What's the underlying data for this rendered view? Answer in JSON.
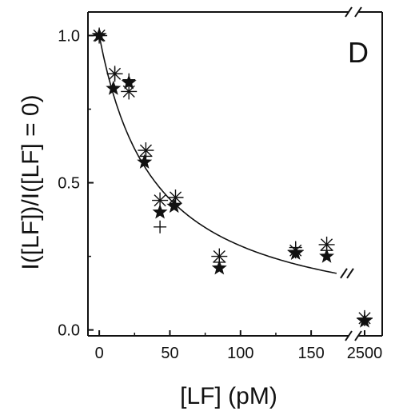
{
  "chart_data": {
    "type": "scatter",
    "title": "",
    "panel_label": "D",
    "xlabel": "[LF] (pM)",
    "ylabel": "I([LF])/I([LF] = 0)",
    "xlim": [
      -8,
      172
    ],
    "ylim": [
      -0.02,
      1.08
    ],
    "x_axis_break": {
      "after": 172,
      "resume_tick": 2500
    },
    "xticks": [
      0,
      50,
      100,
      150
    ],
    "xtick_labels": [
      "0",
      "50",
      "100",
      "150"
    ],
    "break_tick_label": "2500",
    "yticks": [
      0.0,
      0.5,
      1.0
    ],
    "ytick_labels": [
      "0.0",
      "0.5",
      "1.0"
    ],
    "grid": false,
    "legend": "none",
    "series": [
      {
        "marker": "star-filled",
        "points": [
          [
            0,
            1.0
          ],
          [
            10,
            0.82
          ],
          [
            21,
            0.84
          ],
          [
            32,
            0.57
          ],
          [
            43,
            0.4
          ],
          [
            53,
            0.42
          ],
          [
            85,
            0.21
          ],
          [
            139,
            0.26
          ],
          [
            161,
            0.25
          ],
          [
            2500,
            0.03
          ]
        ]
      },
      {
        "marker": "asterisk",
        "points": [
          [
            0,
            1.0
          ],
          [
            11,
            0.87
          ],
          [
            21,
            0.81
          ],
          [
            33,
            0.61
          ],
          [
            43,
            0.44
          ],
          [
            54,
            0.45
          ],
          [
            85,
            0.25
          ],
          [
            139,
            0.27
          ],
          [
            161,
            0.29
          ],
          [
            2500,
            0.04
          ]
        ]
      },
      {
        "marker": "plus",
        "points": [
          [
            0,
            1.0
          ],
          [
            11,
            0.87
          ],
          [
            21,
            0.85
          ],
          [
            33,
            0.59
          ],
          [
            43,
            0.35
          ],
          [
            54,
            0.43
          ],
          [
            85,
            0.23
          ],
          [
            139,
            0.28
          ],
          [
            161,
            0.27
          ],
          [
            2500,
            0.04
          ]
        ]
      }
    ],
    "fit_curve": {
      "form": "1/(1 + x/K)",
      "K": 40,
      "x_range": [
        0,
        168
      ]
    }
  },
  "colors": {
    "ink": "#111111",
    "background": "#ffffff"
  }
}
